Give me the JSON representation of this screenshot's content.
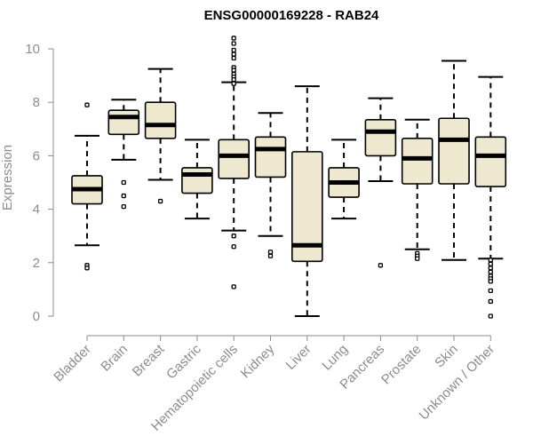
{
  "chart_data": {
    "type": "box",
    "title": "ENSG00000169228 - RAB24",
    "xlabel": "",
    "ylabel": "Expression",
    "ylim": [
      0,
      10
    ],
    "yticks": [
      0,
      2,
      4,
      6,
      8,
      10
    ],
    "grid": false,
    "colors": {
      "box_fill": "#efe8d0",
      "box_stroke": "#000000",
      "median": "#000000",
      "axis": "#8c8c8c",
      "title": "#000000"
    },
    "categories": [
      "Bladder",
      "Brain",
      "Breast",
      "Gastric",
      "Hematopoietic cells",
      "Kidney",
      "Liver",
      "Lung",
      "Pancreas",
      "Prostate",
      "Skin",
      "Unknown / Other"
    ],
    "boxes": [
      {
        "category": "Bladder",
        "min": 2.65,
        "q1": 4.2,
        "median": 4.75,
        "q3": 5.25,
        "max": 6.75,
        "outliers": [
          7.9,
          1.9,
          1.8
        ]
      },
      {
        "category": "Brain",
        "min": 5.85,
        "q1": 6.8,
        "median": 7.45,
        "q3": 7.7,
        "max": 8.1,
        "outliers": [
          5.0,
          4.5,
          4.1
        ]
      },
      {
        "category": "Breast",
        "min": 5.1,
        "q1": 6.65,
        "median": 7.15,
        "q3": 8.0,
        "max": 9.25,
        "outliers": [
          4.3
        ]
      },
      {
        "category": "Gastric",
        "min": 3.65,
        "q1": 4.6,
        "median": 5.3,
        "q3": 5.55,
        "max": 6.6,
        "outliers": []
      },
      {
        "category": "Hematopoietic cells",
        "min": 3.2,
        "q1": 5.15,
        "median": 6.0,
        "q3": 6.6,
        "max": 8.75,
        "outliers": [
          10.4,
          10.2,
          9.95,
          9.8,
          9.65,
          9.3,
          9.2,
          9.05,
          8.95,
          8.85,
          8.7,
          3.0,
          2.6,
          1.1
        ]
      },
      {
        "category": "Kidney",
        "min": 3.0,
        "q1": 5.2,
        "median": 6.25,
        "q3": 6.7,
        "max": 7.6,
        "outliers": [
          2.4,
          2.25
        ]
      },
      {
        "category": "Liver",
        "min": 0.0,
        "q1": 2.05,
        "median": 2.65,
        "q3": 6.15,
        "max": 8.6,
        "outliers": []
      },
      {
        "category": "Lung",
        "min": 3.65,
        "q1": 4.45,
        "median": 5.0,
        "q3": 5.55,
        "max": 6.6,
        "outliers": []
      },
      {
        "category": "Pancreas",
        "min": 5.05,
        "q1": 6.0,
        "median": 6.9,
        "q3": 7.35,
        "max": 8.15,
        "outliers": [
          1.9
        ]
      },
      {
        "category": "Prostate",
        "min": 2.5,
        "q1": 4.95,
        "median": 5.9,
        "q3": 6.65,
        "max": 7.35,
        "outliers": [
          2.35,
          2.25,
          2.15
        ]
      },
      {
        "category": "Skin",
        "min": 2.1,
        "q1": 4.95,
        "median": 6.6,
        "q3": 7.4,
        "max": 9.55,
        "outliers": []
      },
      {
        "category": "Unknown / Other",
        "min": 2.15,
        "q1": 4.85,
        "median": 6.0,
        "q3": 6.7,
        "max": 8.95,
        "outliers": [
          2.1,
          1.95,
          1.8,
          1.65,
          1.5,
          1.4,
          1.3,
          0.95,
          0.55,
          0.0
        ]
      }
    ]
  }
}
